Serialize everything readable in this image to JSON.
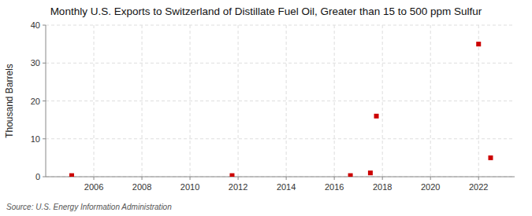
{
  "chart_data": {
    "type": "scatter",
    "title": "Monthly U.S. Exports to Switzerland of Distillate Fuel Oil, Greater than 15 to 500 ppm Sulfur",
    "ylabel": "Thousand Barrels",
    "source": "Source: U.S. Energy Information Administration",
    "x": [
      2005.08,
      2011.75,
      2016.67,
      2017.5,
      2017.75,
      2022.0,
      2022.5
    ],
    "values": [
      0.3,
      0.3,
      0.3,
      1.0,
      16.0,
      35.0,
      5.0
    ],
    "color": "#cc0000",
    "marker": "square",
    "xlim": [
      2004.0,
      2023.5
    ],
    "xticks": [
      2006,
      2008,
      2010,
      2012,
      2014,
      2016,
      2018,
      2020,
      2022
    ],
    "ylim": [
      0,
      40
    ],
    "yticks": [
      0,
      10,
      20,
      30,
      40
    ],
    "grid": true
  }
}
